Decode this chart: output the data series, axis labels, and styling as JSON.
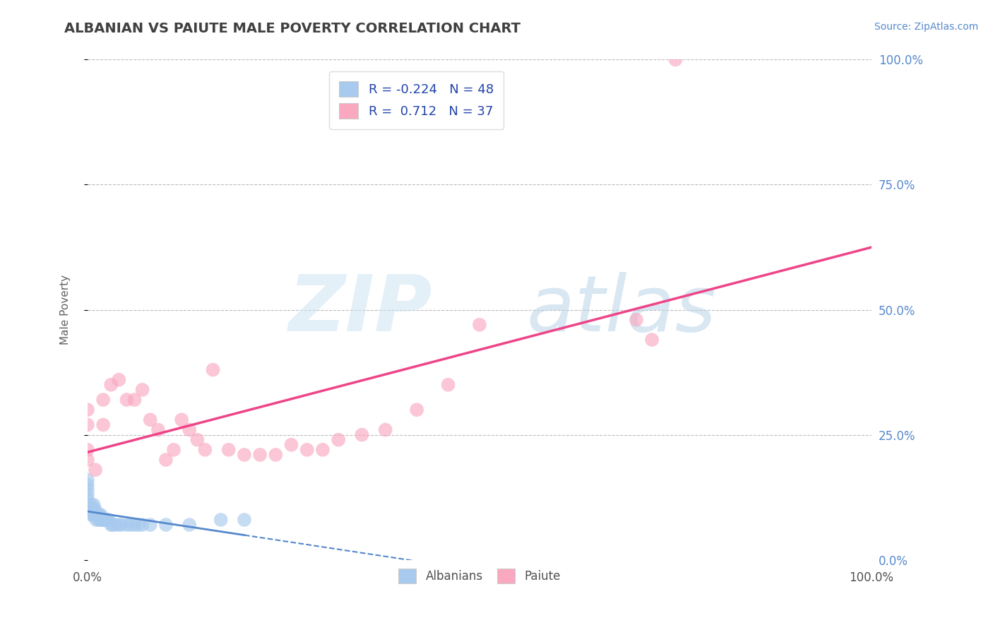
{
  "title": "ALBANIAN VS PAIUTE MALE POVERTY CORRELATION CHART",
  "source": "Source: ZipAtlas.com",
  "ylabel": "Male Poverty",
  "legend_label_1": "Albanians",
  "legend_label_2": "Paiute",
  "r_albanian": -0.224,
  "n_albanian": 48,
  "r_paiute": 0.712,
  "n_paiute": 37,
  "albanian_color": "#a8caee",
  "paiute_color": "#f9a8c0",
  "albanian_line_color": "#5588cc",
  "paiute_line_color": "#ee4488",
  "background_color": "#ffffff",
  "grid_color": "#bbbbbb",
  "title_color": "#404040",
  "right_tick_color": "#5588cc",
  "source_color": "#5588cc",
  "legend_text_color": "#2244aa",
  "xlim": [
    0.0,
    1.0
  ],
  "ylim": [
    0.0,
    1.0
  ],
  "albanian_x": [
    0.0,
    0.0,
    0.0,
    0.0,
    0.0,
    0.0,
    0.0,
    0.005,
    0.005,
    0.005,
    0.007,
    0.007,
    0.008,
    0.008,
    0.009,
    0.01,
    0.01,
    0.011,
    0.011,
    0.012,
    0.013,
    0.014,
    0.015,
    0.016,
    0.017,
    0.018,
    0.019,
    0.02,
    0.021,
    0.022,
    0.023,
    0.025,
    0.027,
    0.03,
    0.032,
    0.035,
    0.04,
    0.043,
    0.05,
    0.055,
    0.06,
    0.065,
    0.07,
    0.08,
    0.1,
    0.13,
    0.17,
    0.2
  ],
  "albanian_y": [
    0.1,
    0.11,
    0.12,
    0.13,
    0.14,
    0.15,
    0.16,
    0.09,
    0.1,
    0.11,
    0.09,
    0.1,
    0.1,
    0.11,
    0.09,
    0.09,
    0.1,
    0.08,
    0.09,
    0.09,
    0.09,
    0.08,
    0.09,
    0.08,
    0.09,
    0.08,
    0.08,
    0.08,
    0.08,
    0.08,
    0.08,
    0.08,
    0.08,
    0.07,
    0.07,
    0.07,
    0.07,
    0.07,
    0.07,
    0.07,
    0.07,
    0.07,
    0.07,
    0.07,
    0.07,
    0.07,
    0.08,
    0.08
  ],
  "paiute_x": [
    0.0,
    0.0,
    0.0,
    0.0,
    0.01,
    0.02,
    0.02,
    0.03,
    0.04,
    0.05,
    0.06,
    0.07,
    0.08,
    0.09,
    0.1,
    0.11,
    0.12,
    0.13,
    0.14,
    0.15,
    0.16,
    0.18,
    0.2,
    0.22,
    0.24,
    0.26,
    0.28,
    0.3,
    0.32,
    0.35,
    0.38,
    0.42,
    0.46,
    0.5,
    0.7,
    0.72,
    0.75
  ],
  "paiute_y": [
    0.27,
    0.22,
    0.2,
    0.3,
    0.18,
    0.27,
    0.32,
    0.35,
    0.36,
    0.32,
    0.32,
    0.34,
    0.28,
    0.26,
    0.2,
    0.22,
    0.28,
    0.26,
    0.24,
    0.22,
    0.38,
    0.22,
    0.21,
    0.21,
    0.21,
    0.23,
    0.22,
    0.22,
    0.24,
    0.25,
    0.26,
    0.3,
    0.35,
    0.47,
    0.48,
    0.44,
    1.0
  ],
  "yticks": [
    0.0,
    0.25,
    0.5,
    0.75,
    1.0
  ],
  "ytick_labels_right": [
    "0.0%",
    "25.0%",
    "50.0%",
    "75.0%",
    "100.0%"
  ],
  "xtick_labels": [
    "0.0%",
    "100.0%"
  ]
}
